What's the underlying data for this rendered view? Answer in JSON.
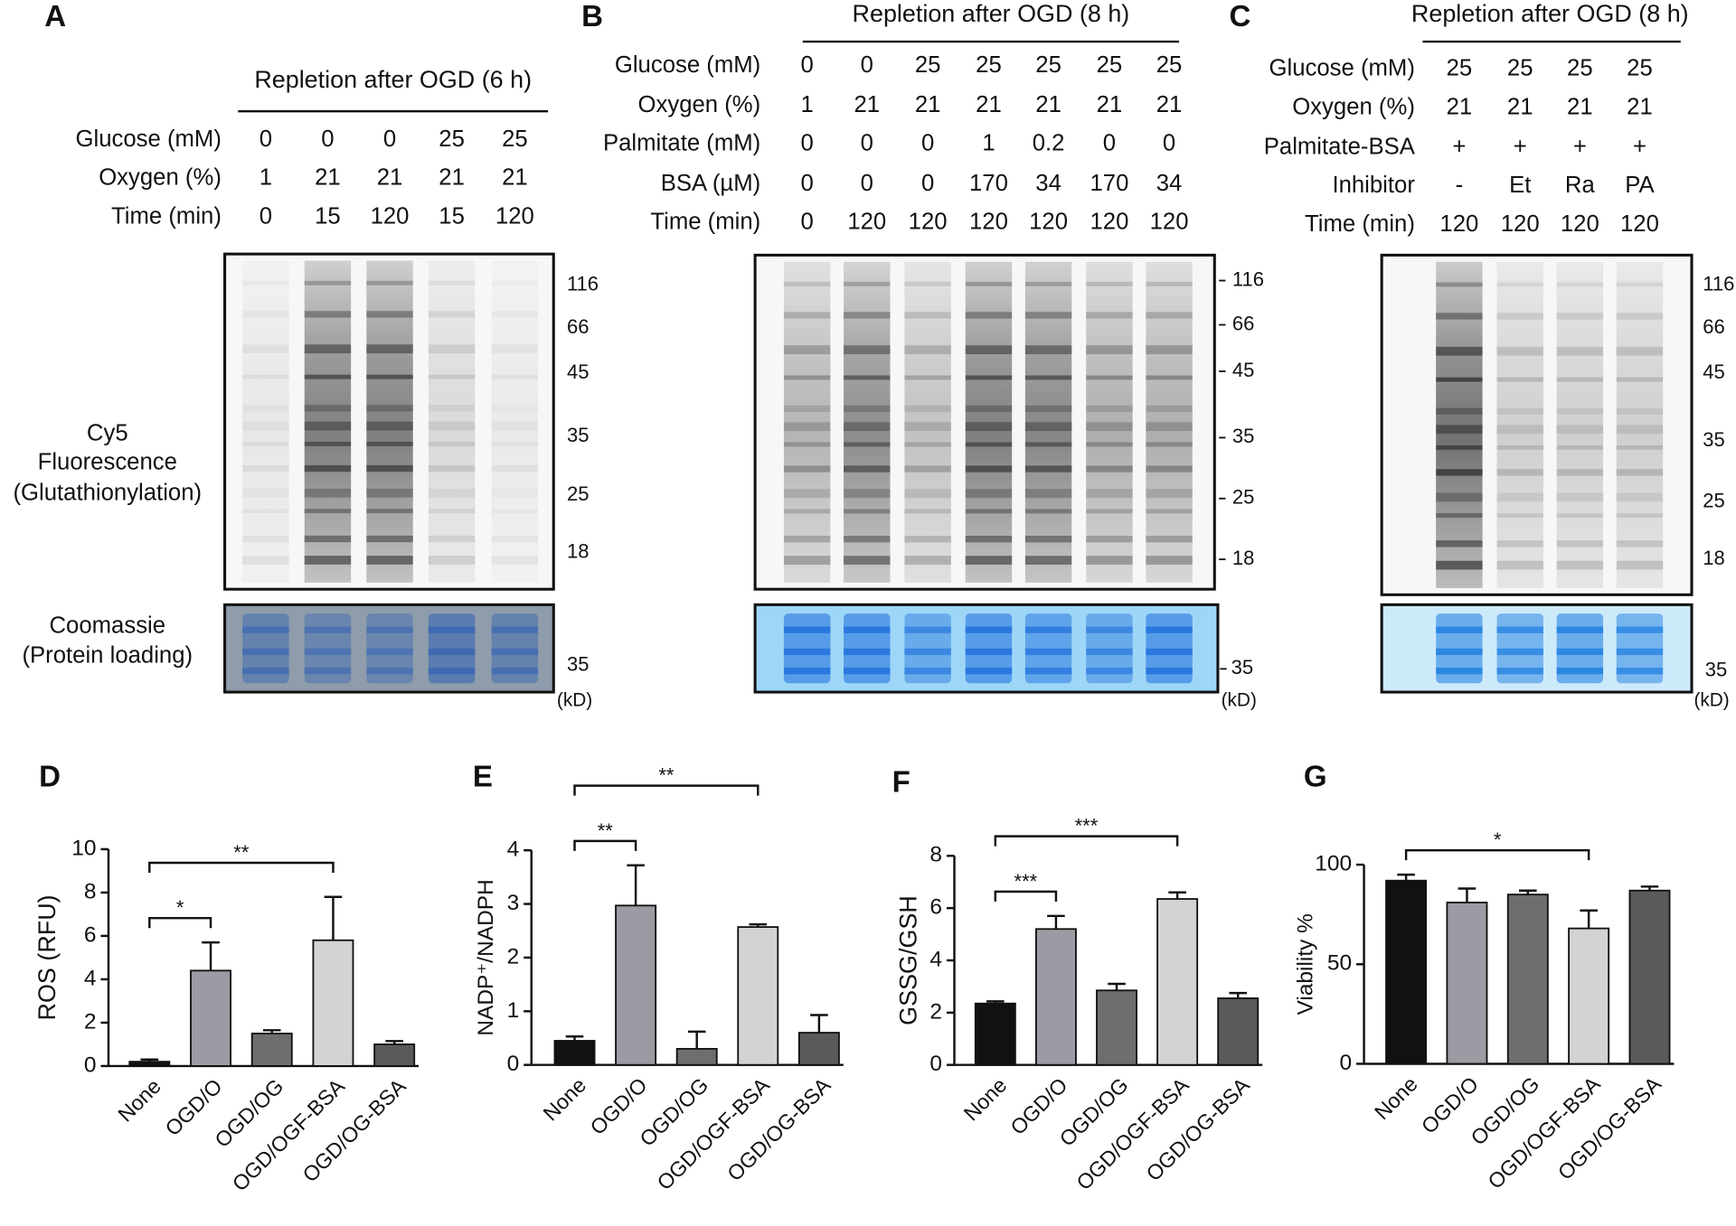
{
  "gels": [
    {
      "panel": "A",
      "header": "Repletion after OGD (6 h)",
      "rows": [
        {
          "label": "Glucose (mM)",
          "values": [
            "0",
            "0",
            "0",
            "25",
            "25"
          ]
        },
        {
          "label": "Oxygen (%)",
          "values": [
            "1",
            "21",
            "21",
            "21",
            "21"
          ]
        },
        {
          "label": "Time (min)",
          "values": [
            "0",
            "15",
            "120",
            "15",
            "120"
          ]
        }
      ],
      "markers": [
        "116",
        "66",
        "45",
        "35",
        "25",
        "18"
      ],
      "stain_marker": "35",
      "unit": "(kD)",
      "gel_label": [
        "Cy5",
        "Fluorescence",
        "(Glutathionylation)"
      ],
      "stain_label": [
        "Coomassie",
        "(Protein loading)"
      ]
    },
    {
      "panel": "B",
      "header": "Repletion after OGD (8 h)",
      "rows": [
        {
          "label": "Glucose (mM)",
          "values": [
            "0",
            "0",
            "25",
            "25",
            "25",
            "25",
            "25"
          ]
        },
        {
          "label": "Oxygen (%)",
          "values": [
            "1",
            "21",
            "21",
            "21",
            "21",
            "21",
            "21"
          ]
        },
        {
          "label": "Palmitate (mM)",
          "values": [
            "0",
            "0",
            "0",
            "1",
            "0.2",
            "0",
            "0"
          ]
        },
        {
          "label": "BSA (µM)",
          "values": [
            "0",
            "0",
            "0",
            "170",
            "34",
            "170",
            "34"
          ]
        },
        {
          "label": "Time (min)",
          "values": [
            "0",
            "120",
            "120",
            "120",
            "120",
            "120",
            "120"
          ]
        }
      ],
      "markers": [
        "116",
        "66",
        "45",
        "35",
        "25",
        "18"
      ],
      "stain_marker": "35",
      "unit": "(kD)"
    },
    {
      "panel": "C",
      "header": "Repletion after OGD (8 h)",
      "rows": [
        {
          "label": "Glucose (mM)",
          "values": [
            "25",
            "25",
            "25",
            "25"
          ]
        },
        {
          "label": "Oxygen (%)",
          "values": [
            "21",
            "21",
            "21",
            "21"
          ]
        },
        {
          "label": "Palmitate-BSA",
          "values": [
            "+",
            "+",
            "+",
            "+"
          ]
        },
        {
          "label": "Inhibitor",
          "values": [
            "-",
            "Et",
            "Ra",
            "PA"
          ]
        },
        {
          "label": "Time (min)",
          "values": [
            "120",
            "120",
            "120",
            "120"
          ]
        }
      ],
      "markers": [
        "116",
        "66",
        "45",
        "35",
        "25",
        "18"
      ],
      "stain_marker": "35",
      "unit": "(kD)"
    }
  ],
  "chart_data": [
    {
      "type": "bar",
      "panel": "D",
      "ylabel": "ROS (RFU)",
      "categories": [
        "None",
        "OGD/O",
        "OGD/OG",
        "OGD/OGF-BSA",
        "OGD/OG-BSA"
      ],
      "values": [
        0.2,
        4.4,
        1.5,
        5.8,
        1.0
      ],
      "errors": [
        0.1,
        1.3,
        0.15,
        2.0,
        0.15
      ],
      "colors": [
        "#111111",
        "#9b9ba3",
        "#6e6e6e",
        "#d3d3d3",
        "#5a5a5a"
      ],
      "ylim": [
        0,
        10
      ],
      "yticks": [
        0,
        2,
        4,
        6,
        8,
        10
      ],
      "significance": [
        {
          "label": "*",
          "from": "None",
          "to": "OGD/O"
        },
        {
          "label": "**",
          "from": "None",
          "to": "OGD/OGF-BSA"
        }
      ]
    },
    {
      "type": "bar",
      "panel": "E",
      "ylabel": "NADP⁺/NADPH",
      "categories": [
        "None",
        "OGD/O",
        "OGD/OG",
        "OGD/OGF-BSA",
        "OGD/OG-BSA"
      ],
      "values": [
        0.45,
        2.97,
        0.3,
        2.57,
        0.6
      ],
      "errors": [
        0.08,
        0.75,
        0.32,
        0.05,
        0.33
      ],
      "colors": [
        "#111111",
        "#9b9ba3",
        "#6e6e6e",
        "#d3d3d3",
        "#5a5a5a"
      ],
      "ylim": [
        0,
        4
      ],
      "yticks": [
        0,
        1,
        2,
        3,
        4
      ],
      "significance": [
        {
          "label": "**",
          "from": "None",
          "to": "OGD/O"
        },
        {
          "label": "**",
          "from": "None",
          "to": "OGD/OGF-BSA"
        }
      ]
    },
    {
      "type": "bar",
      "panel": "F",
      "ylabel": "GSSG/GSH",
      "categories": [
        "None",
        "OGD/O",
        "OGD/OG",
        "OGD/OGF-BSA",
        "OGD/OG-BSA"
      ],
      "values": [
        2.35,
        5.2,
        2.85,
        6.35,
        2.55
      ],
      "errors": [
        0.08,
        0.5,
        0.25,
        0.25,
        0.2
      ],
      "colors": [
        "#111111",
        "#9b9ba3",
        "#6e6e6e",
        "#d3d3d3",
        "#5a5a5a"
      ],
      "ylim": [
        0,
        8
      ],
      "yticks": [
        0,
        2,
        4,
        6,
        8
      ],
      "significance": [
        {
          "label": "***",
          "from": "None",
          "to": "OGD/O"
        },
        {
          "label": "***",
          "from": "None",
          "to": "OGD/OGF-BSA"
        }
      ]
    },
    {
      "type": "bar",
      "panel": "G",
      "ylabel": "Viability %",
      "categories": [
        "None",
        "OGD/O",
        "OGD/OG",
        "OGD/OGF-BSA",
        "OGD/OG-BSA"
      ],
      "values": [
        92,
        81,
        85,
        68,
        87
      ],
      "errors": [
        3,
        7,
        2,
        9,
        2
      ],
      "colors": [
        "#111111",
        "#9b9ba3",
        "#6e6e6e",
        "#d3d3d3",
        "#5a5a5a"
      ],
      "ylim": [
        0,
        100
      ],
      "yticks": [
        0,
        50,
        100
      ],
      "significance": [
        {
          "label": "*",
          "from": "None",
          "to": "OGD/OGF-BSA"
        }
      ]
    }
  ]
}
